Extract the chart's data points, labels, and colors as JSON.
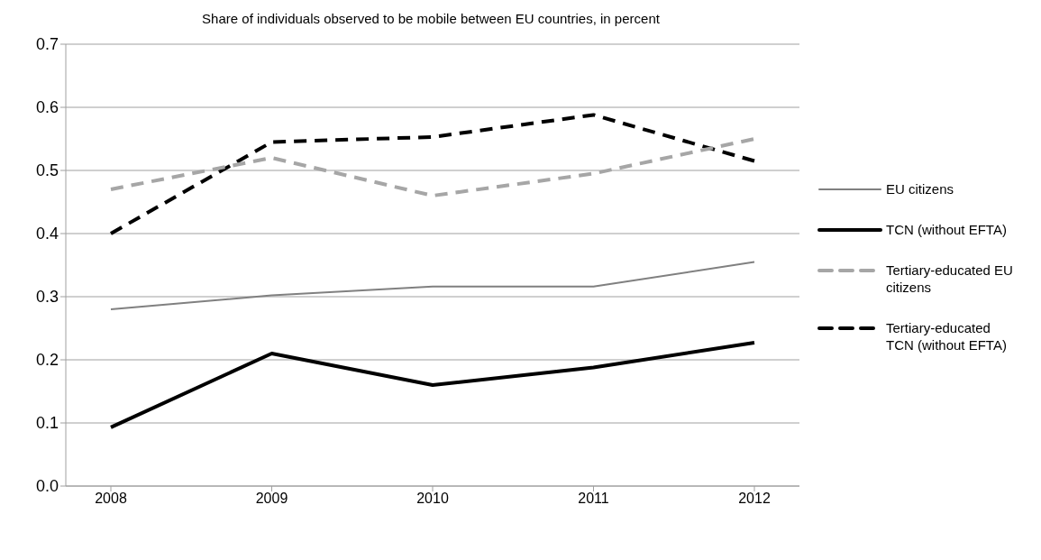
{
  "chart_data": {
    "type": "line",
    "title": "Share of individuals observed to be mobile between EU countries, in percent",
    "categories": [
      "2008",
      "2009",
      "2010",
      "2011",
      "2012"
    ],
    "series": [
      {
        "name": "TCN (without EFTA)",
        "color": "#000000",
        "line_style": "solid",
        "values": [
          0.093,
          0.21,
          0.16,
          0.188,
          0.227
        ]
      },
      {
        "name": "EU citizens",
        "color": "#808080",
        "line_style": "solid",
        "values": [
          0.28,
          0.302,
          0.316,
          0.316,
          0.355
        ]
      },
      {
        "name": "Tertiary-educated TCN (without EFTA)",
        "color": "#000000",
        "line_style": "dashed",
        "values": [
          0.4,
          0.545,
          0.553,
          0.588,
          0.515
        ]
      },
      {
        "name": "Tertiary-educated EU citizens",
        "color": "#a6a6a6",
        "line_style": "dashed",
        "values": [
          0.47,
          0.52,
          0.46,
          0.495,
          0.55
        ]
      }
    ],
    "ylim": [
      0,
      0.7
    ],
    "yticks": [
      {
        "value": 0,
        "label": "0.0"
      },
      {
        "value": 0.1,
        "label": "0.1"
      },
      {
        "value": 0.2,
        "label": "0.2"
      },
      {
        "value": 0.3,
        "label": "0.3"
      },
      {
        "value": 0.4,
        "label": "0.4"
      },
      {
        "value": 0.5,
        "label": "0.5"
      },
      {
        "value": 0.6,
        "label": "0.6"
      },
      {
        "value": 0.7,
        "label": "0.7"
      }
    ],
    "grid": "y",
    "legend": "right",
    "marker": "none"
  }
}
